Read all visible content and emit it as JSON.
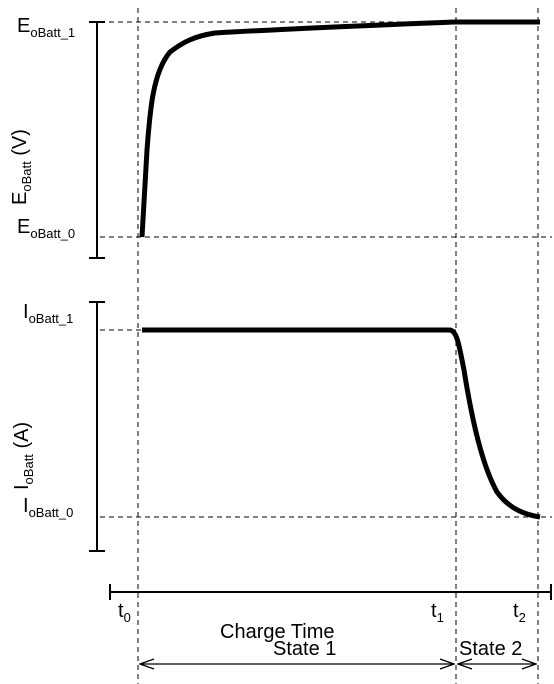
{
  "top_panel": {
    "axis_title_main": "E",
    "axis_title_sub": "oBatt",
    "axis_title_unit": " (V)",
    "high_label_main": "E",
    "high_label_sub": "oBatt_1",
    "low_label_main": "E",
    "low_label_sub": "oBatt_0"
  },
  "bottom_panel": {
    "axis_title_main": "I",
    "axis_title_sub": "oBatt",
    "axis_title_unit": " (A)",
    "high_label_main": "I",
    "high_label_sub": "oBatt_1",
    "low_label_main": "I",
    "low_label_sub": "oBatt_0"
  },
  "time_axis": {
    "label": "Charge Time",
    "t0_main": "t",
    "t0_sub": "0",
    "t1_main": "t",
    "t1_sub": "1",
    "t2_main": "t",
    "t2_sub": "2"
  },
  "states": {
    "state1": "State 1",
    "state2": "State 2"
  },
  "colors": {
    "ink": "#000000",
    "background": "#ffffff"
  }
}
